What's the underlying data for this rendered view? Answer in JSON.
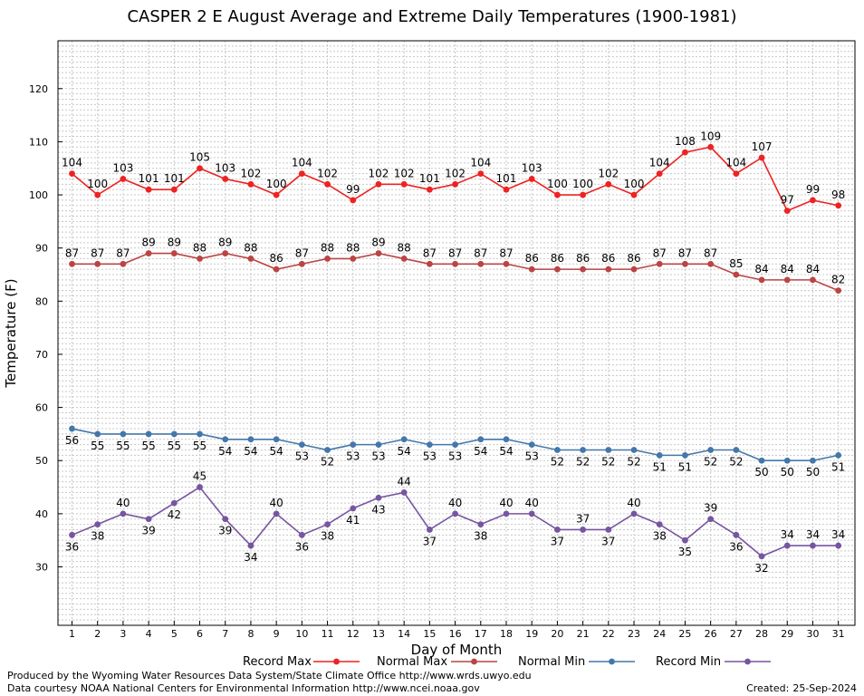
{
  "chart_data": {
    "type": "line",
    "title": "CASPER 2 E August Average and Extreme Daily Temperatures (1900-1981)",
    "xlabel": "Day of Month",
    "ylabel": "Temperature (F)",
    "ylim": [
      19,
      129
    ],
    "yticks": [
      30,
      40,
      50,
      60,
      70,
      80,
      90,
      100,
      110,
      120
    ],
    "grid": true,
    "legend_position": "bottom",
    "x": [
      1,
      2,
      3,
      4,
      5,
      6,
      7,
      8,
      9,
      10,
      11,
      12,
      13,
      14,
      15,
      16,
      17,
      18,
      19,
      20,
      21,
      22,
      23,
      24,
      25,
      26,
      27,
      28,
      29,
      30,
      31
    ],
    "series": [
      {
        "name": "Record Max",
        "color": "#ee2222",
        "label_pos": "above",
        "values": [
          104,
          100,
          103,
          101,
          101,
          105,
          103,
          102,
          100,
          104,
          102,
          99,
          102,
          102,
          101,
          102,
          104,
          101,
          103,
          100,
          100,
          102,
          100,
          104,
          108,
          109,
          104,
          107,
          97,
          99,
          98
        ]
      },
      {
        "name": "Normal Max",
        "color": "#bb4444",
        "label_pos": "above",
        "values": [
          87,
          87,
          87,
          89,
          89,
          88,
          89,
          88,
          86,
          87,
          88,
          88,
          89,
          88,
          87,
          87,
          87,
          87,
          86,
          86,
          86,
          86,
          86,
          87,
          87,
          87,
          85,
          84,
          84,
          84,
          82
        ]
      },
      {
        "name": "Normal Min",
        "color": "#4477aa",
        "label_pos": "below",
        "values": [
          56,
          55,
          55,
          55,
          55,
          55,
          54,
          54,
          54,
          53,
          52,
          53,
          53,
          54,
          53,
          53,
          54,
          54,
          53,
          52,
          52,
          52,
          52,
          51,
          51,
          52,
          52,
          50,
          50,
          50,
          51
        ]
      },
      {
        "name": "Record Min",
        "color": "#7755a0",
        "label_pos": "alternate",
        "values": [
          36,
          38,
          40,
          39,
          42,
          45,
          39,
          34,
          40,
          36,
          38,
          41,
          43,
          44,
          37,
          40,
          38,
          40,
          40,
          37,
          37,
          37,
          40,
          38,
          35,
          39,
          36,
          32,
          34,
          34,
          34
        ]
      }
    ]
  },
  "footer": {
    "credit_line_1": "Produced by the Wyoming Water Resources Data System/State Climate Office http://www.wrds.uwyo.edu",
    "credit_line_2": "Data courtesy NOAA National Centers for Environmental Information http://www.ncei.noaa.gov",
    "created_label": "Created:",
    "created_date": "25-Sep-2024"
  }
}
